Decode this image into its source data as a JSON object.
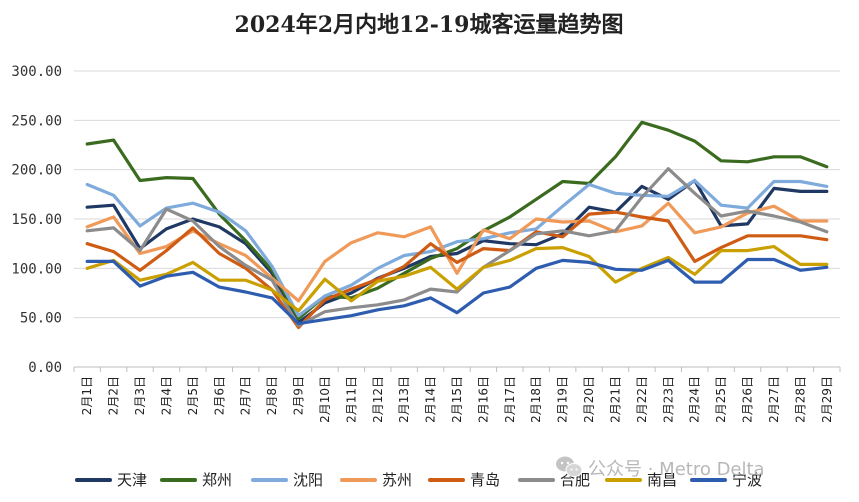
{
  "chart_data": {
    "type": "line",
    "title": "2024年2月内地12-19城客运量趋势图",
    "xlabel": "",
    "ylabel": "",
    "ylim": [
      0,
      300
    ],
    "yticks": [
      0,
      50,
      100,
      150,
      200,
      250,
      300
    ],
    "ytick_labels": [
      "0.00",
      "50.00",
      "100.00",
      "150.00",
      "200.00",
      "250.00",
      "300.00"
    ],
    "grid": true,
    "legend_position": "bottom",
    "categories": [
      "2月1日",
      "2月2日",
      "2月3日",
      "2月4日",
      "2月5日",
      "2月6日",
      "2月7日",
      "2月8日",
      "2月9日",
      "2月10日",
      "2月11日",
      "2月12日",
      "2月13日",
      "2月14日",
      "2月15日",
      "2月16日",
      "2月17日",
      "2月18日",
      "2月19日",
      "2月20日",
      "2月21日",
      "2月22日",
      "2月23日",
      "2月24日",
      "2月25日",
      "2月26日",
      "2月27日",
      "2月28日",
      "2月29日"
    ],
    "series": [
      {
        "name": "天津",
        "color": "#1f3864",
        "values": [
          162,
          164,
          120,
          140,
          150,
          142,
          125,
          95,
          45,
          65,
          75,
          90,
          100,
          112,
          115,
          128,
          125,
          124,
          135,
          162,
          157,
          183,
          170,
          189,
          143,
          145,
          181,
          178,
          178
        ]
      },
      {
        "name": "郑州",
        "color": "#3a6b1f",
        "values": [
          226,
          230,
          189,
          192,
          191,
          155,
          128,
          98,
          49,
          72,
          70,
          80,
          95,
          110,
          120,
          138,
          152,
          170,
          188,
          186,
          213,
          248,
          240,
          229,
          209,
          208,
          213,
          213,
          203
        ]
      },
      {
        "name": "沈阳",
        "color": "#7fabdc",
        "values": [
          185,
          174,
          143,
          161,
          166,
          157,
          138,
          102,
          52,
          72,
          83,
          100,
          113,
          117,
          127,
          130,
          136,
          140,
          163,
          185,
          176,
          174,
          173,
          189,
          164,
          161,
          188,
          188,
          183
        ]
      },
      {
        "name": "苏州",
        "color": "#f09a5a",
        "values": [
          142,
          152,
          115,
          122,
          138,
          125,
          113,
          90,
          67,
          107,
          126,
          136,
          132,
          142,
          95,
          139,
          130,
          150,
          147,
          148,
          137,
          143,
          166,
          136,
          142,
          156,
          163,
          148,
          148
        ]
      },
      {
        "name": "青岛",
        "color": "#cf5c14",
        "values": [
          125,
          117,
          98,
          118,
          141,
          115,
          100,
          78,
          40,
          68,
          79,
          89,
          102,
          125,
          106,
          120,
          118,
          137,
          132,
          155,
          157,
          152,
          148,
          107,
          121,
          133,
          133,
          133,
          129
        ]
      },
      {
        "name": "合肥",
        "color": "#8c8c8c",
        "values": [
          138,
          141,
          118,
          160,
          148,
          122,
          103,
          88,
          42,
          56,
          60,
          63,
          68,
          79,
          76,
          101,
          118,
          135,
          138,
          133,
          138,
          172,
          201,
          176,
          153,
          158,
          153,
          147,
          137
        ]
      },
      {
        "name": "南昌",
        "color": "#c9a000",
        "values": [
          100,
          108,
          88,
          94,
          106,
          88,
          88,
          78,
          57,
          89,
          67,
          87,
          92,
          101,
          79,
          101,
          108,
          120,
          121,
          112,
          86,
          100,
          111,
          94,
          118,
          118,
          122,
          104,
          104
        ]
      },
      {
        "name": "宁波",
        "color": "#2e5db0",
        "values": [
          107,
          107,
          82,
          92,
          96,
          81,
          76,
          70,
          44,
          48,
          52,
          58,
          62,
          70,
          55,
          75,
          81,
          100,
          108,
          106,
          99,
          98,
          108,
          86,
          86,
          109,
          109,
          98,
          101
        ]
      }
    ]
  },
  "watermark": {
    "text": "公众号 · Metro Delta",
    "icon": "wechat-icon"
  }
}
